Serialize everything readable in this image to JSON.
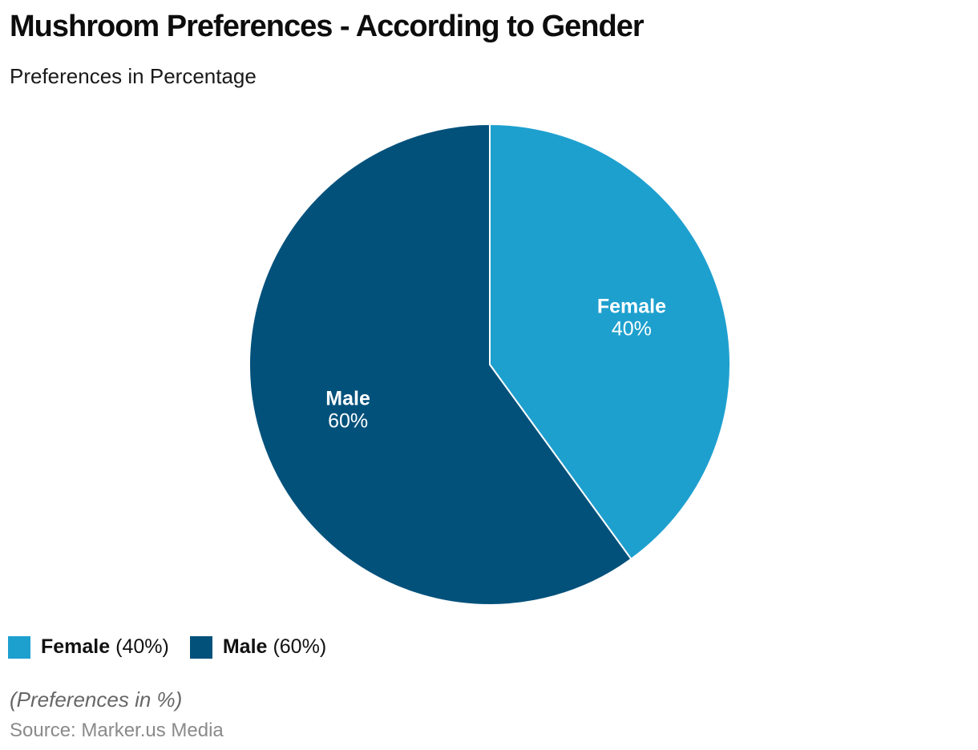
{
  "header": {
    "title": "Mushroom Preferences - According to Gender",
    "subtitle": "Preferences in Percentage"
  },
  "chart_data": {
    "type": "pie",
    "title": "Mushroom Preferences - According to Gender",
    "subtitle": "Preferences in Percentage",
    "categories": [
      "Female",
      "Male"
    ],
    "values": [
      40,
      60
    ],
    "colors": [
      "#1EA0CF",
      "#02517B"
    ],
    "slice_labels": [
      {
        "name": "Female",
        "value_text": "40%"
      },
      {
        "name": "Male",
        "value_text": "60%"
      }
    ],
    "start_angle_deg": 0,
    "direction": "clockwise",
    "slice_label_color": "#ffffff",
    "separator_color": "#ffffff",
    "legend_position": "bottom-left"
  },
  "legend": {
    "items": [
      {
        "name": "Female",
        "value_text": "(40%)"
      },
      {
        "name": "Male",
        "value_text": "(60%)"
      }
    ]
  },
  "footer": {
    "note": "(Preferences in %)",
    "source": "Source: Marker.us Media"
  }
}
